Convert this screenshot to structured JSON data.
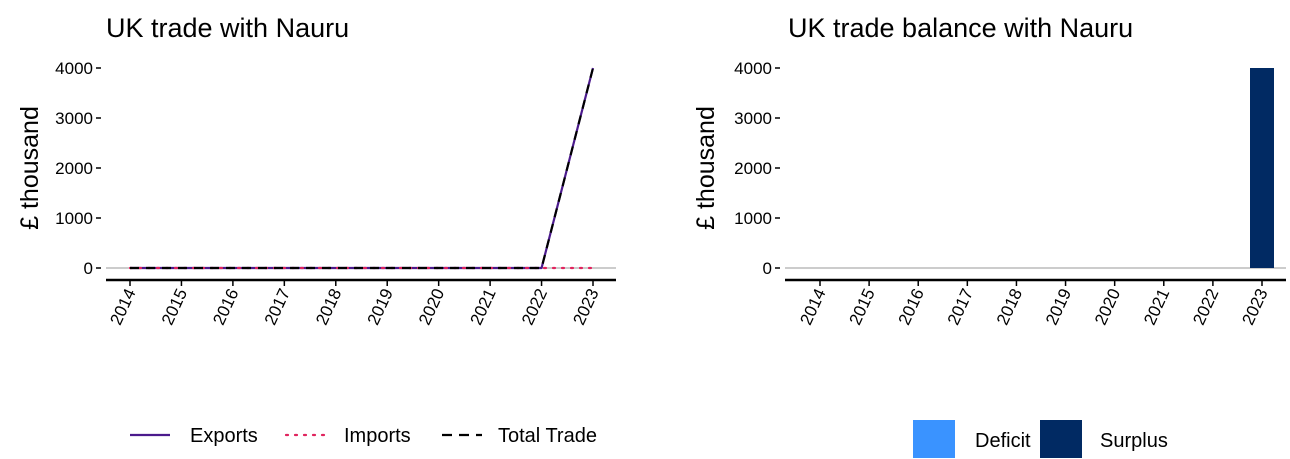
{
  "chart_data": [
    {
      "type": "line",
      "title": "UK trade with Nauru",
      "xlabel": "",
      "ylabel": "£ thousand",
      "x": [
        "2014",
        "2015",
        "2016",
        "2017",
        "2018",
        "2019",
        "2020",
        "2021",
        "2022",
        "2023"
      ],
      "ylim": [
        0,
        4000
      ],
      "yticks": [
        0,
        1000,
        2000,
        3000,
        4000
      ],
      "grid": false,
      "legend": "bottom",
      "series": [
        {
          "name": "Exports",
          "color": "#4b1a8c",
          "style": "solid",
          "values": [
            0,
            0,
            0,
            0,
            0,
            0,
            0,
            0,
            0,
            4000
          ]
        },
        {
          "name": "Imports",
          "color": "#e0245e",
          "style": "dotted",
          "values": [
            0,
            0,
            0,
            0,
            0,
            0,
            0,
            0,
            0,
            0
          ]
        },
        {
          "name": "Total Trade",
          "color": "#000000",
          "style": "dashed",
          "values": [
            0,
            0,
            0,
            0,
            0,
            0,
            0,
            0,
            0,
            4000
          ]
        }
      ]
    },
    {
      "type": "bar",
      "title": "UK trade balance with Nauru",
      "xlabel": "",
      "ylabel": "£ thousand",
      "categories": [
        "2014",
        "2015",
        "2016",
        "2017",
        "2018",
        "2019",
        "2020",
        "2021",
        "2022",
        "2023"
      ],
      "ylim": [
        0,
        4000
      ],
      "yticks": [
        0,
        1000,
        2000,
        3000,
        4000
      ],
      "grid": false,
      "legend": "bottom",
      "values": [
        0,
        0,
        0,
        0,
        0,
        0,
        0,
        0,
        0,
        4000
      ],
      "legend_items": [
        {
          "name": "Deficit",
          "color": "#3a93ff"
        },
        {
          "name": "Surplus",
          "color": "#012a63"
        }
      ]
    }
  ]
}
